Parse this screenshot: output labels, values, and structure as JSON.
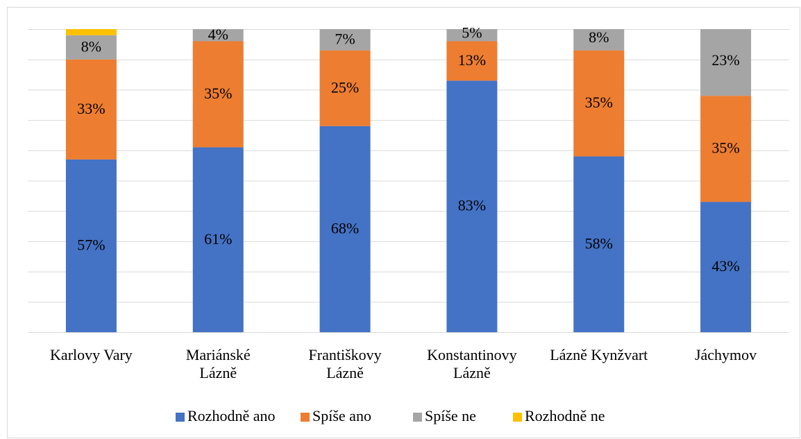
{
  "chart_data": {
    "type": "stacked_bar",
    "categories": [
      "Karlovy Vary",
      "Mariánské\nLázně",
      "Františkovy\nLázně",
      "Konstantinovy\nLázně",
      "Lázně Kynžvart",
      "Jáchymov"
    ],
    "series": [
      {
        "name": "Rozhodně ano",
        "color": "#4472c4",
        "values": [
          57,
          61,
          68,
          83,
          58,
          43
        ],
        "value_labels": [
          "57%",
          "61%",
          "68%",
          "83%",
          "58%",
          "43%"
        ]
      },
      {
        "name": "Spíše ano",
        "color": "#ed7d31",
        "values": [
          33,
          35,
          25,
          13,
          35,
          35
        ],
        "value_labels": [
          "33%",
          "35%",
          "25%",
          "13%",
          "35%",
          "35%"
        ]
      },
      {
        "name": "Spíše ne",
        "color": "#a5a5a5",
        "values": [
          8,
          4,
          7,
          5,
          8,
          23
        ],
        "value_labels": [
          "8%",
          "4%",
          "7%",
          "5%",
          "8%",
          "23%"
        ]
      },
      {
        "name": "Rozhodně ne",
        "color": "#ffc000",
        "values": [
          2,
          0,
          0,
          0,
          0,
          0
        ],
        "value_labels": [
          null,
          null,
          null,
          null,
          null,
          null
        ]
      }
    ],
    "ylim": [
      0,
      100
    ],
    "yticks": [
      0,
      10,
      20,
      30,
      40,
      50,
      60,
      70,
      80,
      90,
      100
    ],
    "grid": true,
    "legend": "bottom"
  }
}
